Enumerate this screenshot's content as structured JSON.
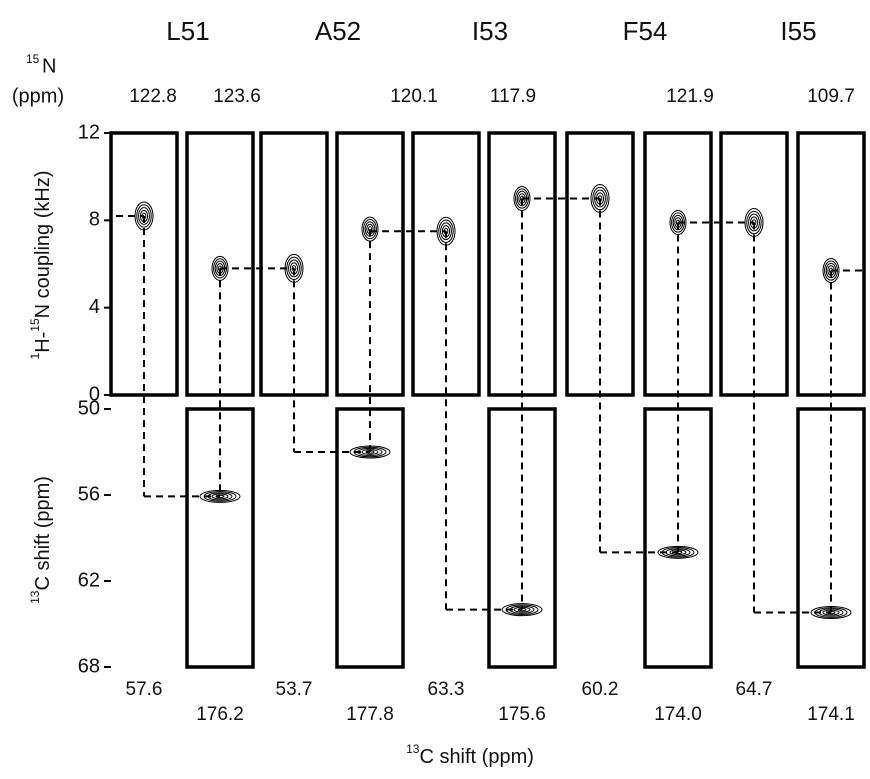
{
  "chart_data": {
    "type": "nmr-strips",
    "residues": [
      "L51",
      "A52",
      "I53",
      "F54",
      "I55"
    ],
    "n15_label": [
      "15",
      "N",
      "(ppm)"
    ],
    "n15_shifts": [
      "122.8",
      "123.6",
      "120.1",
      "117.9",
      "121.9",
      "109.7"
    ],
    "top_axis_title": [
      "1",
      "H-",
      "15",
      "N coupling (kHz)"
    ],
    "ylim": [
      0,
      12
    ],
    "yticks": [
      0,
      4,
      8,
      12
    ],
    "bottom_axis_title": [
      "13",
      "C shift (ppm)"
    ],
    "y2lim": [
      50,
      68
    ],
    "y2ticks": [
      50,
      56,
      62,
      68
    ],
    "strip_labels": [
      "57.6",
      "176.2",
      "53.7",
      "177.8",
      "63.3",
      "175.6",
      "60.2",
      "174.0",
      "64.7",
      "174.1"
    ],
    "x_axis_title": [
      "13",
      "C shift (ppm)"
    ],
    "ca_coupling": [
      8.2,
      5.8,
      7.5,
      9.0,
      7.9
    ],
    "co_coupling": [
      5.8,
      7.6,
      9.0,
      7.9,
      5.7
    ],
    "cross_shift": [
      56.1,
      53.0,
      64.0,
      60.0,
      64.2
    ]
  }
}
